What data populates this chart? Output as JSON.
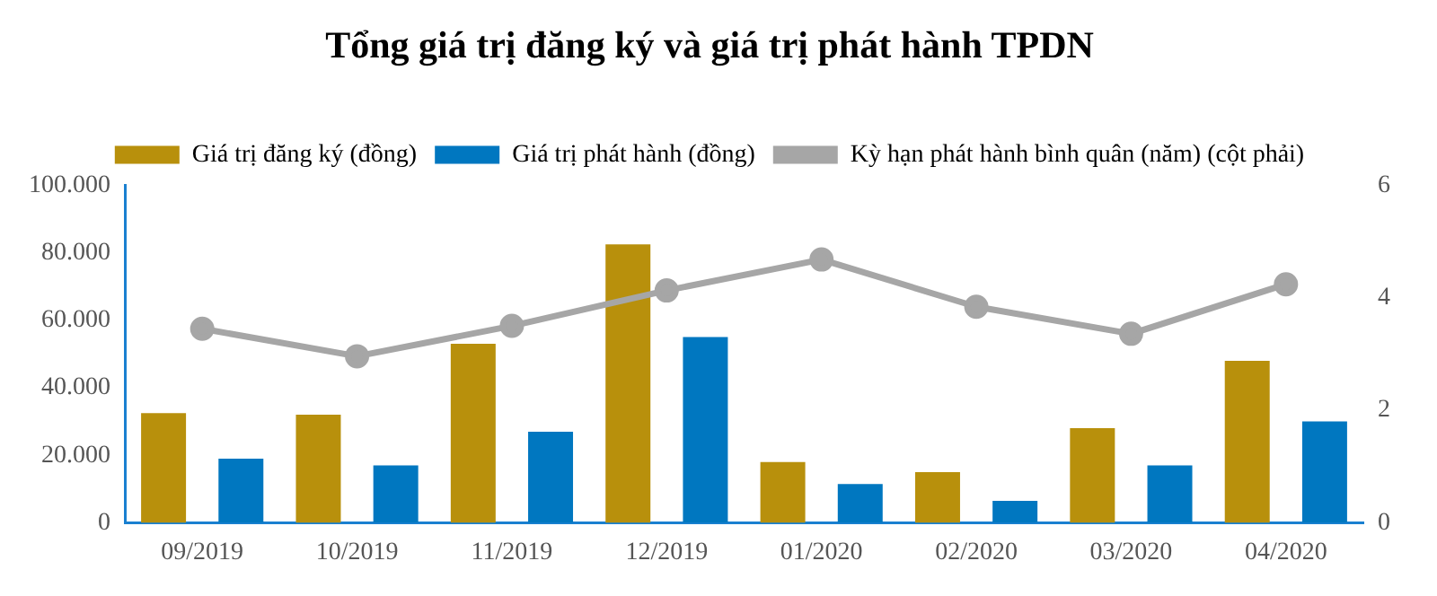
{
  "chart_data": {
    "type": "bar",
    "title": "Tổng giá trị đăng ký và giá trị phát hành TPDN",
    "categories": [
      "09/2019",
      "10/2019",
      "11/2019",
      "12/2019",
      "01/2020",
      "02/2020",
      "03/2020",
      "04/2020"
    ],
    "series": [
      {
        "name": "Giá trị đăng ký (đồng)",
        "color": "#b8900c",
        "values": [
          32500,
          32000,
          53000,
          82500,
          18000,
          15000,
          28000,
          48000
        ]
      },
      {
        "name": "Giá trị phát hành (đồng)",
        "color": "#0077c0",
        "values": [
          19000,
          17000,
          27000,
          55000,
          11500,
          6500,
          17000,
          30000
        ]
      },
      {
        "name": "Kỳ hạn phát hành bình quân (năm) (cột phải)",
        "type": "line",
        "axis": "y2",
        "color": "#a6a6a6",
        "marker": "circle",
        "line_style": "solid",
        "values": [
          3.45,
          2.96,
          3.5,
          4.13,
          4.68,
          3.84,
          3.36,
          4.24
        ]
      }
    ],
    "ylim": [
      0,
      100000
    ],
    "yticks": [
      {
        "value": 0,
        "label": "0"
      },
      {
        "value": 20000,
        "label": "20.000"
      },
      {
        "value": 40000,
        "label": "40.000"
      },
      {
        "value": 60000,
        "label": "60.000"
      },
      {
        "value": 80000,
        "label": "80.000"
      },
      {
        "value": 100000,
        "label": "100.000"
      }
    ],
    "y2lim": [
      0,
      6
    ],
    "y2ticks": [
      0,
      2,
      4,
      6
    ],
    "grid": false,
    "legend": "top"
  }
}
